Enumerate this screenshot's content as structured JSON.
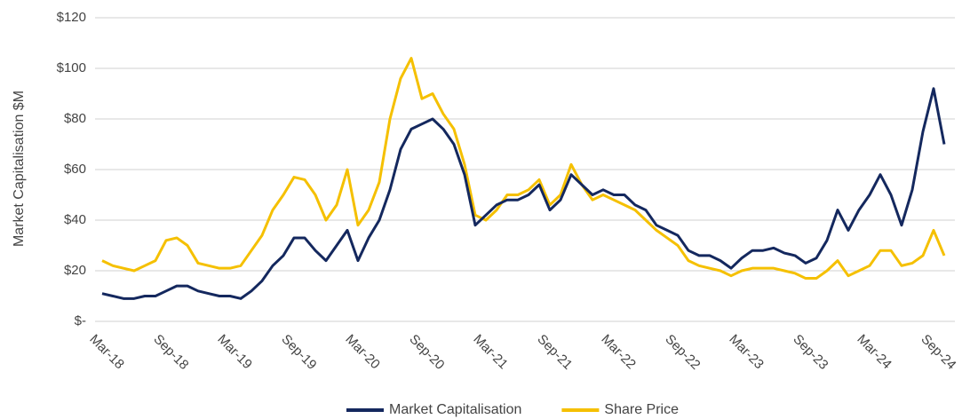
{
  "chart_data": {
    "type": "line",
    "y_label": "Market Capitalisation $M",
    "categories": [
      "Mar-18",
      null,
      null,
      null,
      null,
      null,
      "Sep-18",
      null,
      null,
      null,
      null,
      null,
      "Mar-19",
      null,
      null,
      null,
      null,
      null,
      "Sep-19",
      null,
      null,
      null,
      null,
      null,
      "Mar-20",
      null,
      null,
      null,
      null,
      null,
      "Sep-20",
      null,
      null,
      null,
      null,
      null,
      "Mar-21",
      null,
      null,
      null,
      null,
      null,
      "Sep-21",
      null,
      null,
      null,
      null,
      null,
      "Mar-22",
      null,
      null,
      null,
      null,
      null,
      "Sep-22",
      null,
      null,
      null,
      null,
      null,
      "Mar-23",
      null,
      null,
      null,
      null,
      null,
      "Sep-23",
      null,
      null,
      null,
      null,
      null,
      "Mar-24",
      null,
      null,
      null,
      null,
      null,
      "Sep-24",
      null
    ],
    "series": [
      {
        "name": "Market Capitalisation",
        "color": "#14285e",
        "values": [
          11,
          10,
          9,
          9,
          10,
          10,
          12,
          14,
          14,
          12,
          11,
          10,
          10,
          9,
          12,
          16,
          22,
          26,
          33,
          33,
          28,
          24,
          30,
          36,
          24,
          33,
          40,
          52,
          68,
          76,
          78,
          80,
          76,
          70,
          58,
          38,
          42,
          46,
          48,
          48,
          50,
          54,
          44,
          48,
          58,
          54,
          50,
          52,
          50,
          50,
          46,
          44,
          38,
          36,
          34,
          28,
          26,
          26,
          24,
          21,
          25,
          28,
          28,
          29,
          27,
          26,
          23,
          25,
          32,
          44,
          36,
          44,
          50,
          58,
          50,
          38,
          52,
          75,
          92,
          70
        ]
      },
      {
        "name": "Share Price",
        "color": "#f5c000",
        "values": [
          24,
          22,
          21,
          20,
          22,
          24,
          32,
          33,
          30,
          23,
          22,
          21,
          21,
          22,
          28,
          34,
          44,
          50,
          57,
          56,
          50,
          40,
          46,
          60,
          38,
          44,
          55,
          80,
          96,
          104,
          88,
          90,
          82,
          76,
          62,
          42,
          40,
          44,
          50,
          50,
          52,
          56,
          46,
          50,
          62,
          54,
          48,
          50,
          48,
          46,
          44,
          40,
          36,
          33,
          30,
          24,
          22,
          21,
          20,
          18,
          20,
          21,
          21,
          21,
          20,
          19,
          17,
          17,
          20,
          24,
          18,
          20,
          22,
          28,
          28,
          22,
          23,
          26,
          36,
          26
        ]
      }
    ],
    "ylim": [
      0,
      120
    ],
    "yticks": [
      {
        "value": 0,
        "label": "$-"
      },
      {
        "value": 20,
        "label": "$20"
      },
      {
        "value": 40,
        "label": "$40"
      },
      {
        "value": 60,
        "label": "$60"
      },
      {
        "value": 80,
        "label": "$80"
      },
      {
        "value": 100,
        "label": "$100"
      },
      {
        "value": 120,
        "label": "$120"
      }
    ],
    "grid": true,
    "legend": "bottom"
  }
}
